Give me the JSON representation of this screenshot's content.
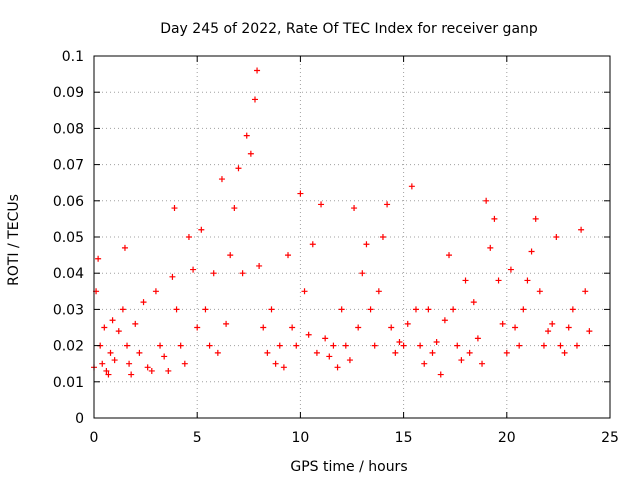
{
  "chart_data": {
    "type": "scatter",
    "title": "Day 245 of 2022, Rate Of TEC Index for receiver ganp",
    "xlabel": "GPS time / hours",
    "ylabel": "ROTI / TECUs",
    "xlim": [
      0,
      25
    ],
    "ylim": [
      0,
      0.1
    ],
    "xticks": [
      0,
      5,
      10,
      15,
      20,
      25
    ],
    "xtick_labels": [
      "0",
      "5",
      "10",
      "15",
      "20",
      "25"
    ],
    "yticks": [
      0,
      0.01,
      0.02,
      0.03,
      0.04,
      0.05,
      0.06,
      0.07,
      0.08,
      0.09,
      0.1
    ],
    "ytick_labels": [
      "0",
      "0.01",
      "0.02",
      "0.03",
      "0.04",
      "0.05",
      "0.06",
      "0.07",
      "0.08",
      "0.09",
      "0.1"
    ],
    "grid": true,
    "grid_style": "dotted",
    "marker": "+",
    "series_color": "#ff0000",
    "series": [
      {
        "x": [
          0.0,
          0.1,
          0.2,
          0.3,
          0.4,
          0.5,
          0.6,
          0.7,
          0.8,
          0.9,
          1.0,
          1.2,
          1.4,
          1.5,
          1.6,
          1.7,
          1.8,
          2.0,
          2.2,
          2.4,
          2.6,
          2.8,
          3.0,
          3.2,
          3.4,
          3.6,
          3.8,
          3.9,
          4.0,
          4.2,
          4.4,
          4.6,
          4.8,
          5.0,
          5.2,
          5.4,
          5.6,
          5.8,
          6.0,
          6.2,
          6.4,
          6.6,
          6.8,
          7.0,
          7.2,
          7.4,
          7.6,
          7.8,
          7.9,
          8.0,
          8.2,
          8.4,
          8.6,
          8.8,
          9.0,
          9.2,
          9.4,
          9.6,
          9.8,
          10.0,
          10.2,
          10.4,
          10.6,
          10.8,
          11.0,
          11.2,
          11.4,
          11.6,
          11.8,
          12.0,
          12.2,
          12.4,
          12.6,
          12.8,
          13.0,
          13.2,
          13.4,
          13.6,
          13.8,
          14.0,
          14.2,
          14.4,
          14.6,
          14.8,
          15.0,
          15.2,
          15.4,
          15.6,
          15.8,
          16.0,
          16.2,
          16.4,
          16.6,
          16.8,
          17.0,
          17.2,
          17.4,
          17.6,
          17.8,
          18.0,
          18.2,
          18.4,
          18.6,
          18.8,
          19.0,
          19.2,
          19.4,
          19.6,
          19.8,
          20.0,
          20.2,
          20.4,
          20.6,
          20.8,
          21.0,
          21.2,
          21.4,
          21.6,
          21.8,
          22.0,
          22.2,
          22.4,
          22.6,
          22.8,
          23.0,
          23.2,
          23.4,
          23.6,
          23.8,
          24.0
        ],
        "y": [
          0.014,
          0.035,
          0.044,
          0.02,
          0.015,
          0.025,
          0.013,
          0.012,
          0.018,
          0.027,
          0.016,
          0.024,
          0.03,
          0.047,
          0.02,
          0.015,
          0.012,
          0.026,
          0.018,
          0.032,
          0.014,
          0.013,
          0.035,
          0.02,
          0.017,
          0.013,
          0.039,
          0.058,
          0.03,
          0.02,
          0.015,
          0.05,
          0.041,
          0.025,
          0.052,
          0.03,
          0.02,
          0.04,
          0.018,
          0.066,
          0.026,
          0.045,
          0.058,
          0.069,
          0.04,
          0.078,
          0.073,
          0.088,
          0.096,
          0.042,
          0.025,
          0.018,
          0.03,
          0.015,
          0.02,
          0.014,
          0.045,
          0.025,
          0.02,
          0.062,
          0.035,
          0.023,
          0.048,
          0.018,
          0.059,
          0.022,
          0.017,
          0.02,
          0.014,
          0.03,
          0.02,
          0.016,
          0.058,
          0.025,
          0.04,
          0.048,
          0.03,
          0.02,
          0.035,
          0.05,
          0.059,
          0.025,
          0.018,
          0.021,
          0.02,
          0.026,
          0.064,
          0.03,
          0.02,
          0.015,
          0.03,
          0.018,
          0.021,
          0.012,
          0.027,
          0.045,
          0.03,
          0.02,
          0.016,
          0.038,
          0.018,
          0.032,
          0.022,
          0.015,
          0.06,
          0.047,
          0.055,
          0.038,
          0.026,
          0.018,
          0.041,
          0.025,
          0.02,
          0.03,
          0.038,
          0.046,
          0.055,
          0.035,
          0.02,
          0.024,
          0.026,
          0.05,
          0.02,
          0.018,
          0.025,
          0.03,
          0.02,
          0.052,
          0.035,
          0.024
        ]
      }
    ]
  }
}
